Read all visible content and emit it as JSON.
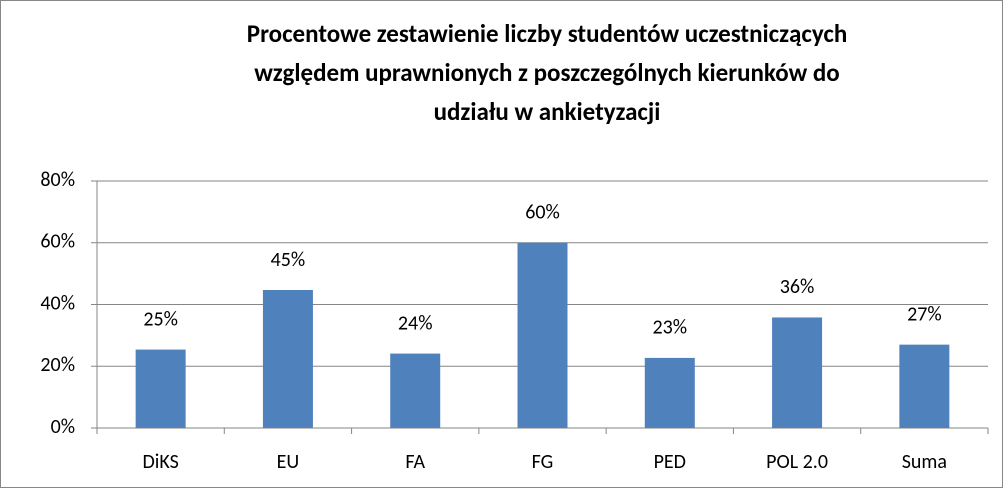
{
  "chart_data": {
    "type": "bar",
    "title": [
      "Procentowe zestawienie liczby studentów uczestniczących",
      "względem uprawnionych z poszczególnych kierunków do",
      "udziału w ankietyzacji"
    ],
    "categories": [
      "DiKS",
      "EU",
      "FA",
      "FG",
      "PED",
      "POL 2.0",
      "Suma"
    ],
    "values": [
      25.4,
      44.7,
      24.1,
      60,
      22.7,
      35.8,
      27
    ],
    "value_labels": [
      "25%",
      "45%",
      "24%",
      "60%",
      "23%",
      "36%",
      "27%"
    ],
    "color": "#4f81bd",
    "ylim": [
      0,
      80
    ],
    "yticks": [
      {
        "value": 0,
        "label": "0%"
      },
      {
        "value": 20,
        "label": "20%"
      },
      {
        "value": 40,
        "label": "40%"
      },
      {
        "value": 60,
        "label": "60%"
      },
      {
        "value": 80,
        "label": "80%"
      }
    ],
    "grid": true
  }
}
